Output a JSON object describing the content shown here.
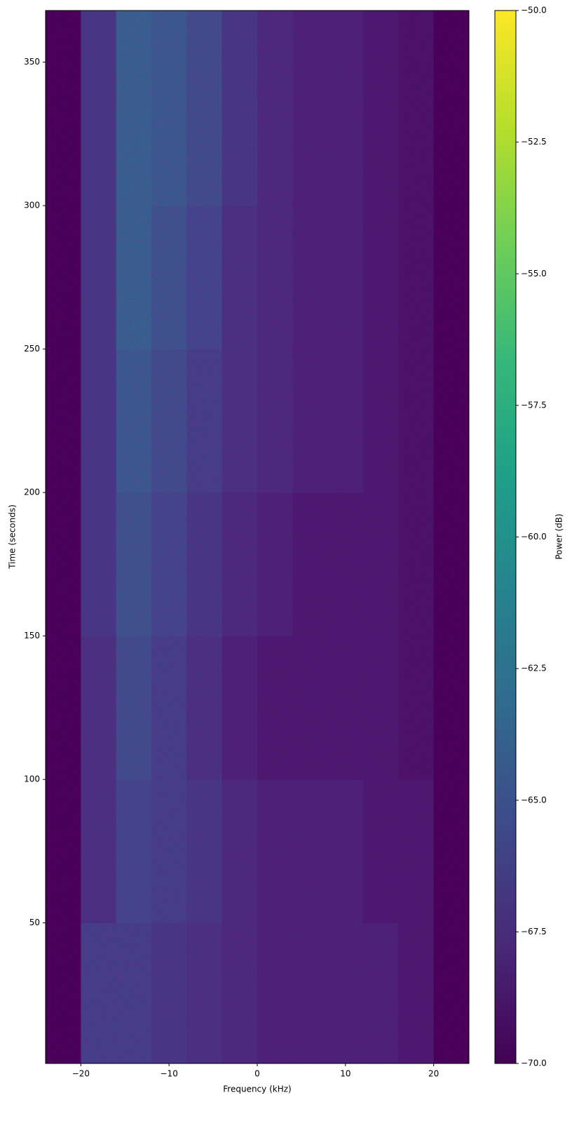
{
  "chart_data": {
    "type": "heatmap",
    "xlabel": "Frequency (kHz)",
    "ylabel": "Time (seconds)",
    "colorbar_label": "Power (dB)",
    "colormap": "viridis",
    "clim": [
      -70,
      -50
    ],
    "xlim": [
      -24,
      24
    ],
    "ylim": [
      1,
      368
    ],
    "xticks": [
      {
        "value": -20,
        "label": "−20"
      },
      {
        "value": -10,
        "label": "−10"
      },
      0,
      10,
      20
    ],
    "yticks": [
      50,
      100,
      150,
      200,
      250,
      300,
      350
    ],
    "cticks": [
      {
        "value": -70,
        "label": "−70.0"
      },
      {
        "value": -67.5,
        "label": "−67.5"
      },
      {
        "value": -65,
        "label": "−65.0"
      },
      {
        "value": -62.5,
        "label": "−62.5"
      },
      {
        "value": -60,
        "label": "−60.0"
      },
      {
        "value": -57.5,
        "label": "−57.5"
      },
      {
        "value": -55,
        "label": "−55.0"
      },
      {
        "value": -52.5,
        "label": "−52.5"
      },
      {
        "value": -50,
        "label": "−50.0"
      }
    ],
    "xbins": [
      -24,
      -20,
      -16,
      -12,
      -8,
      -4,
      0,
      4,
      8,
      12,
      16,
      20,
      24
    ],
    "ybins": [
      1,
      50,
      100,
      150,
      200,
      250,
      300,
      368
    ],
    "values": [
      [
        -70,
        -66,
        -66,
        -66.5,
        -67,
        -67.5,
        -68,
        -68,
        -68,
        -68,
        -68.5,
        -70
      ],
      [
        -70,
        -67,
        -65.5,
        -66,
        -66.5,
        -67.5,
        -68,
        -68,
        -68,
        -68.5,
        -68.5,
        -70
      ],
      [
        -70,
        -67,
        -65,
        -66,
        -67,
        -68,
        -68.5,
        -68.5,
        -68.5,
        -68.5,
        -69,
        -70
      ],
      [
        -70,
        -66.5,
        -64.5,
        -65.5,
        -66.5,
        -67.5,
        -68,
        -68.5,
        -68.5,
        -68.5,
        -69,
        -70
      ],
      [
        -70,
        -66.5,
        -64,
        -65,
        -66,
        -67,
        -67.5,
        -68,
        -68,
        -68.5,
        -69,
        -70
      ],
      [
        -70,
        -66.5,
        -63.5,
        -64.5,
        -65.5,
        -67,
        -67.5,
        -68,
        -68,
        -68.5,
        -69,
        -70
      ],
      [
        -70,
        -66.5,
        -63.5,
        -64,
        -65,
        -66.5,
        -67.5,
        -68,
        -68,
        -68.5,
        -69,
        -70
      ]
    ]
  }
}
